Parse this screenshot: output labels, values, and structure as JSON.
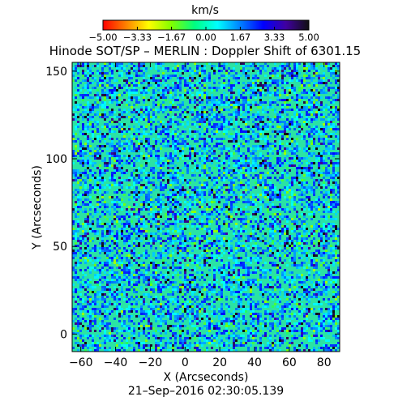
{
  "chart_data": {
    "type": "heatmap",
    "title": "Hinode SOT/SP – MERLIN : Doppler Shift of 6301.15",
    "xlabel": "X (Arcseconds)",
    "ylabel": "Y (Arcseconds)",
    "xlim": [
      -65,
      89
    ],
    "ylim": [
      -10,
      155
    ],
    "x_ticks": [
      -60,
      -40,
      -20,
      0,
      20,
      40,
      60,
      80
    ],
    "x_tick_labels": [
      "−60",
      "−40",
      "−20",
      "0",
      "20",
      "40",
      "60",
      "80"
    ],
    "y_ticks": [
      0,
      50,
      100,
      150
    ],
    "y_tick_labels": [
      "0",
      "50",
      "100",
      "150"
    ],
    "colorbar": {
      "label": "km/s",
      "range": [
        -5.0,
        5.0
      ],
      "ticks": [
        -5.0,
        -3.33,
        -1.67,
        0.0,
        1.67,
        3.33,
        5.0
      ],
      "tick_labels": [
        "−5.00",
        "−3.33",
        "−1.67",
        "0.00",
        "1.67",
        "3.33",
        "5.00"
      ],
      "colormap": [
        "#ff0000",
        "#ff8000",
        "#ffff00",
        "#80ff00",
        "#00ff80",
        "#00ffff",
        "#0080ff",
        "#0000ff",
        "#4000a0",
        "#101010"
      ]
    },
    "field_description_values": {
      "dominant_value_kms": 1.5,
      "spread_kms": 1.2,
      "background_color": "#29e6a6"
    },
    "footer": "21–Sep–2016 02:30:05.139"
  }
}
